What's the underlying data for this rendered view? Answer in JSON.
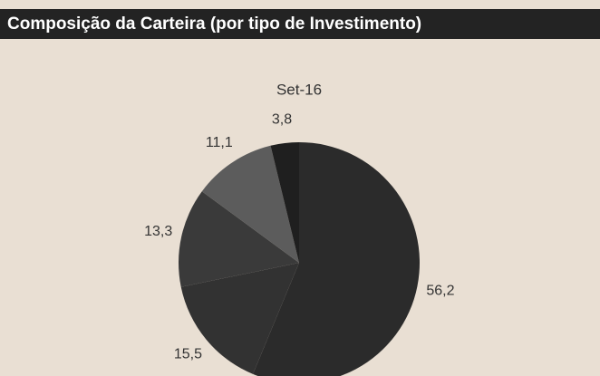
{
  "chart_data": {
    "type": "pie",
    "title": "Composição da Carteira (por tipo de Investimento)",
    "subtitle": "Set-16",
    "values": [
      56.2,
      15.5,
      13.3,
      11.1,
      3.8
    ],
    "value_labels": [
      "56,2",
      "15,5",
      "13,3",
      "11,1",
      "3,8"
    ],
    "colors": [
      "#2b2b2b",
      "#323232",
      "#3a3a3a",
      "#5c5c5c",
      "#1f1f1f"
    ]
  }
}
